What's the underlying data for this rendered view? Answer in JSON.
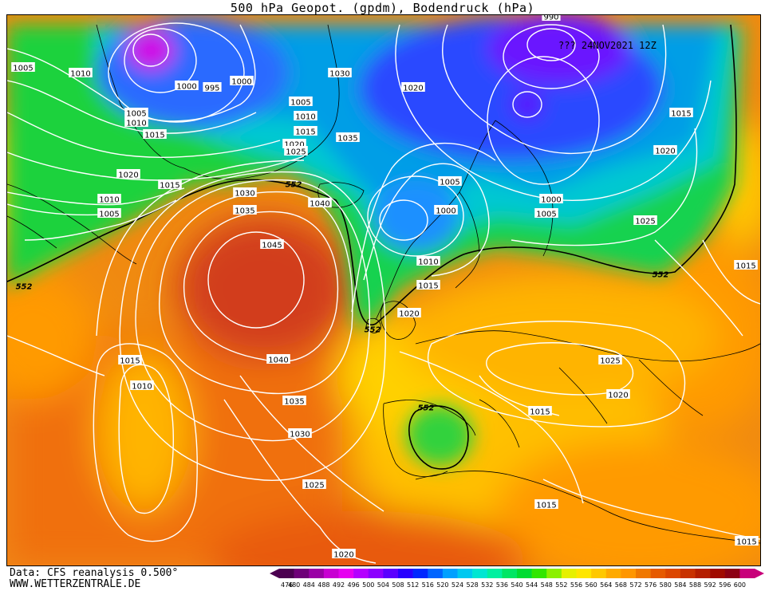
{
  "title": "500 hPa Geopot. (gpdm), Bodendruck (hPa)",
  "run_label": "??? 24NOV2021 12Z",
  "footer": {
    "data_source": "Data: CFS reanalysis 0.500°",
    "website": "WWW.WETTERZENTRALE.DE"
  },
  "legend": {
    "ticks": [
      "476",
      "480",
      "484",
      "488",
      "492",
      "496",
      "500",
      "504",
      "508",
      "512",
      "516",
      "520",
      "524",
      "528",
      "532",
      "536",
      "540",
      "544",
      "548",
      "552",
      "556",
      "560",
      "564",
      "568",
      "572",
      "576",
      "580",
      "584",
      "588",
      "592",
      "596",
      "600"
    ],
    "colors": [
      "#4b0050",
      "#6e0078",
      "#9a00a6",
      "#c800d2",
      "#e600f0",
      "#b400ff",
      "#8c00ff",
      "#5a00ff",
      "#2800ff",
      "#0028ff",
      "#0064ff",
      "#00a0ff",
      "#00c8f0",
      "#00e6d2",
      "#00f0a0",
      "#00e664",
      "#00dc32",
      "#32e600",
      "#8cf000",
      "#e6f000",
      "#ffe600",
      "#ffc800",
      "#ffaa00",
      "#ff9600",
      "#f07800",
      "#e65a00",
      "#dc4600",
      "#c83200",
      "#b41e00",
      "#a00a00",
      "#8c0014",
      "#c8007a"
    ]
  },
  "isobar_labels": [
    {
      "text": "1005"
    },
    {
      "text": "1010"
    },
    {
      "text": "1005"
    },
    {
      "text": "1010"
    },
    {
      "text": "1015"
    },
    {
      "text": "1020"
    },
    {
      "text": "1015"
    },
    {
      "text": "1010"
    },
    {
      "text": "1005"
    },
    {
      "text": "1000"
    },
    {
      "text": "995"
    },
    {
      "text": "1000"
    },
    {
      "text": "1030"
    },
    {
      "text": "1005"
    },
    {
      "text": "1010"
    },
    {
      "text": "1015"
    },
    {
      "text": "1020"
    },
    {
      "text": "1025"
    },
    {
      "text": "1035"
    },
    {
      "text": "1030"
    },
    {
      "text": "1035"
    },
    {
      "text": "1040"
    },
    {
      "text": "1020"
    },
    {
      "text": "1005"
    },
    {
      "text": "1000"
    },
    {
      "text": "1010"
    },
    {
      "text": "1015"
    },
    {
      "text": "1020"
    },
    {
      "text": "1000"
    },
    {
      "text": "1005"
    },
    {
      "text": "1015"
    },
    {
      "text": "1020"
    },
    {
      "text": "1025"
    },
    {
      "text": "1015"
    },
    {
      "text": "1045"
    },
    {
      "text": "1040"
    },
    {
      "text": "1035"
    },
    {
      "text": "1030"
    },
    {
      "text": "1025"
    },
    {
      "text": "1020"
    },
    {
      "text": "1015"
    },
    {
      "text": "1010"
    },
    {
      "text": "1025"
    },
    {
      "text": "1020"
    },
    {
      "text": "1015"
    },
    {
      "text": "1015"
    },
    {
      "text": "1015"
    },
    {
      "text": "990"
    }
  ],
  "geopotential_labels": [
    {
      "text": "552"
    },
    {
      "text": "552"
    },
    {
      "text": "552"
    },
    {
      "text": "552"
    },
    {
      "text": "552"
    }
  ]
}
